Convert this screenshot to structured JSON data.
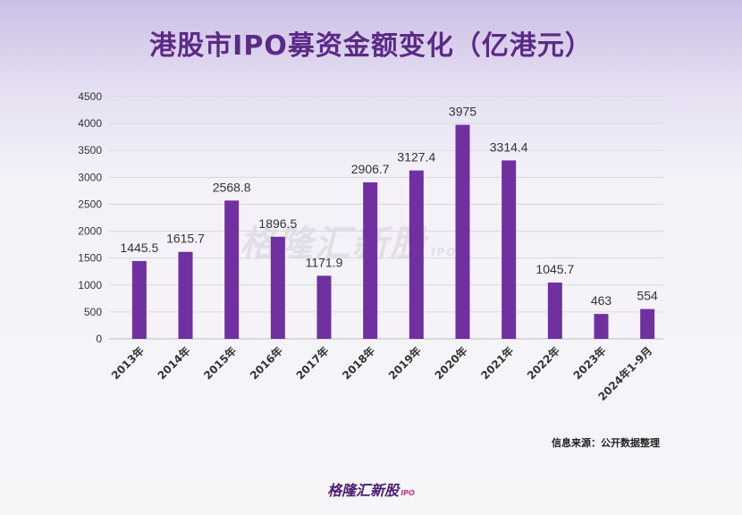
{
  "header": {
    "title": "港股市IPO募资金额变化（亿港元）"
  },
  "source_note": "信息来源：公开数据整理",
  "brand": {
    "name": "格隆汇新股",
    "suffix": "IPO"
  },
  "colors": {
    "bar": "#7030a0",
    "grid": "#d9d9d9",
    "title": "#5b2a86"
  },
  "chart_data": {
    "type": "bar",
    "title": "港股市IPO募资金额变化（亿港元）",
    "xlabel": "",
    "ylabel": "",
    "ylim": [
      0,
      4500
    ],
    "yticks": [
      0,
      500,
      1000,
      1500,
      2000,
      2500,
      3000,
      3500,
      4000,
      4500
    ],
    "grid": true,
    "categories": [
      "2013年",
      "2014年",
      "2015年",
      "2016年",
      "2017年",
      "2018年",
      "2019年",
      "2020年",
      "2021年",
      "2022年",
      "2023年",
      "2024年1-9月"
    ],
    "values": [
      1445.5,
      1615.7,
      2568.8,
      1896.5,
      1171.9,
      2906.7,
      3127.4,
      3975,
      3314.4,
      1045.7,
      463,
      554
    ],
    "value_labels": [
      "1445.5",
      "1615.7",
      "2568.8",
      "1896.5",
      "1171.9",
      "2906.7",
      "3127.4",
      "3975",
      "3314.4",
      "1045.7",
      "463",
      "554"
    ]
  }
}
